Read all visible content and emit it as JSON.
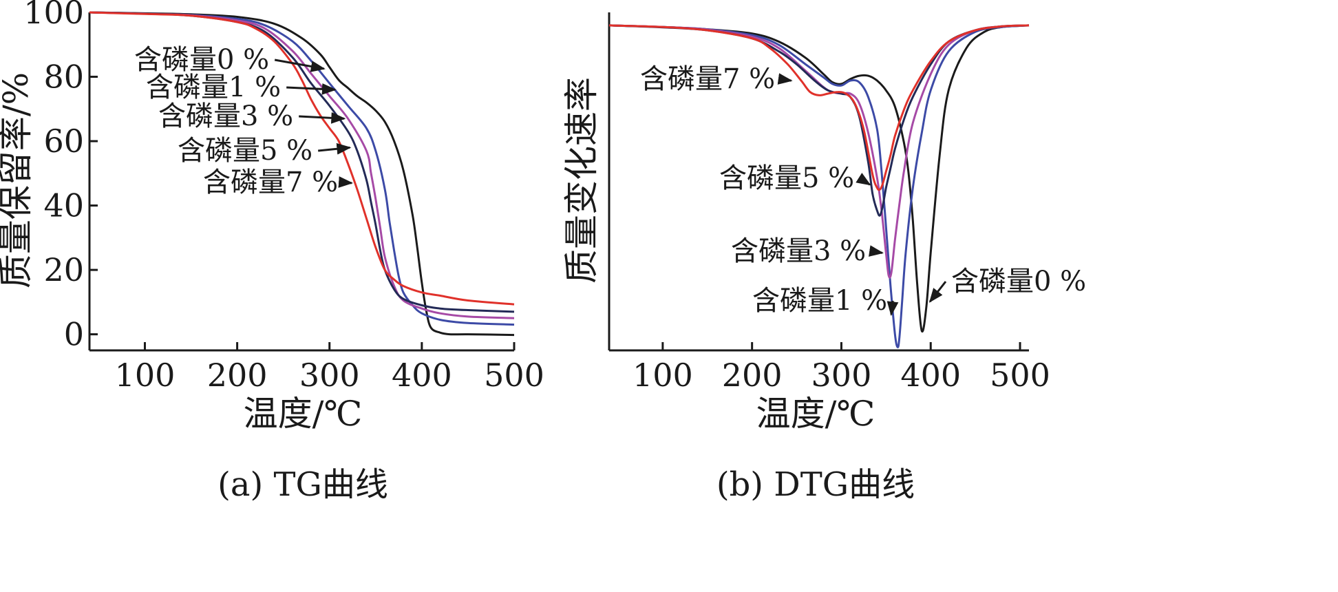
{
  "chart_data": [
    {
      "type": "line",
      "caption": "(a) TG曲线",
      "xlabel": "温度/℃",
      "ylabel": "质量保留率/%",
      "xlim": [
        40,
        500
      ],
      "ylim": [
        -5,
        100
      ],
      "xticks": [
        "100",
        "200",
        "300",
        "400",
        "500"
      ],
      "yticks": [
        "0",
        "20",
        "40",
        "60",
        "80",
        "100"
      ],
      "grid": false,
      "series": [
        {
          "name": "含磷量0 %",
          "color": "#1a1a1a",
          "x": [
            40,
            100,
            150,
            200,
            240,
            270,
            290,
            300,
            310,
            320,
            330,
            340,
            350,
            360,
            370,
            380,
            390,
            395,
            400,
            405,
            410,
            420,
            430,
            450,
            500
          ],
          "y": [
            100,
            99.7,
            99.4,
            98.6,
            96.5,
            92,
            87,
            83,
            79,
            76.5,
            74,
            72,
            69.5,
            66,
            60,
            51,
            37,
            27,
            16,
            7,
            2,
            0.5,
            0,
            0,
            -0.2
          ]
        },
        {
          "name": "含磷量1 %",
          "color": "#3c4aa6",
          "x": [
            40,
            100,
            150,
            200,
            230,
            260,
            280,
            300,
            320,
            340,
            350,
            360,
            365,
            370,
            375,
            380,
            390,
            400,
            420,
            450,
            500
          ],
          "y": [
            100,
            99.6,
            99.2,
            98,
            96,
            91,
            85,
            78,
            71,
            64,
            57,
            45,
            35,
            26,
            18,
            13,
            9,
            6.5,
            4.5,
            3.5,
            3
          ]
        },
        {
          "name": "含磷量3 %",
          "color": "#a64aa6",
          "x": [
            40,
            100,
            150,
            200,
            230,
            260,
            280,
            300,
            320,
            340,
            345,
            350,
            355,
            360,
            370,
            380,
            400,
            420,
            450,
            500
          ],
          "y": [
            100,
            99.6,
            99.1,
            97.5,
            95,
            88,
            81,
            74,
            67,
            57,
            50,
            42,
            33,
            24,
            15,
            10.5,
            8,
            6.5,
            5.5,
            5
          ]
        },
        {
          "name": "含磷量5 %",
          "color": "#232a57",
          "x": [
            40,
            100,
            150,
            200,
            230,
            260,
            280,
            300,
            320,
            330,
            340,
            345,
            350,
            355,
            360,
            370,
            380,
            400,
            420,
            450,
            500
          ],
          "y": [
            100,
            99.6,
            99,
            97,
            94,
            86,
            78,
            71,
            63,
            57,
            48,
            41,
            34,
            26,
            20,
            14,
            11,
            9,
            8,
            7.5,
            7
          ]
        },
        {
          "name": "含磷量7 %",
          "color": "#e0312a",
          "x": [
            40,
            100,
            150,
            200,
            220,
            240,
            260,
            270,
            280,
            290,
            300,
            310,
            320,
            330,
            340,
            350,
            360,
            370,
            380,
            400,
            420,
            450,
            500
          ],
          "y": [
            100,
            99.5,
            99,
            97,
            95,
            91,
            84,
            79,
            73,
            68,
            64,
            60,
            53,
            45,
            36,
            27,
            20,
            17,
            15,
            13,
            12,
            10.5,
            9.3
          ]
        }
      ],
      "annotations": [
        {
          "text": "含磷量0 %",
          "series": "含磷量0 %",
          "target_x": 300,
          "target_y": 82.5
        },
        {
          "text": "含磷量1 %",
          "series": "含磷量1 %",
          "target_x": 312,
          "target_y": 76
        },
        {
          "text": "含磷量3 %",
          "series": "含磷量3 %",
          "target_x": 322,
          "target_y": 67
        },
        {
          "text": "含磷量5 %",
          "series": "含磷量5 %",
          "target_x": 328,
          "target_y": 58
        },
        {
          "text": "含磷量7 %",
          "series": "含磷量7 %",
          "target_x": 330,
          "target_y": 47
        }
      ]
    },
    {
      "type": "line",
      "caption": "(b) DTG曲线",
      "xlabel": "温度/℃",
      "ylabel": "质量变化速率",
      "xlim": [
        40,
        510
      ],
      "ylim": [
        -100,
        4
      ],
      "yticks_labeled": false,
      "xticks": [
        "100",
        "200",
        "300",
        "400",
        "500"
      ],
      "grid": false,
      "series": [
        {
          "name": "含磷量0 %",
          "color": "#1a1a1a",
          "x": [
            40,
            100,
            150,
            200,
            230,
            260,
            280,
            290,
            300,
            310,
            320,
            330,
            340,
            350,
            360,
            370,
            375,
            380,
            385,
            390,
            395,
            400,
            410,
            420,
            440,
            460,
            480,
            510
          ],
          "y": [
            0,
            -0.5,
            -1.2,
            -2.5,
            -5,
            -10,
            -15,
            -17.5,
            -18,
            -16.5,
            -15.5,
            -15.5,
            -17,
            -20,
            -25,
            -36,
            -45,
            -60,
            -80,
            -94,
            -87,
            -70,
            -40,
            -20,
            -7,
            -2,
            -0.5,
            0
          ]
        },
        {
          "name": "含磷量1 %",
          "color": "#3c4aa6",
          "x": [
            40,
            100,
            150,
            200,
            230,
            260,
            280,
            290,
            300,
            310,
            320,
            330,
            340,
            345,
            350,
            355,
            360,
            363,
            365,
            368,
            372,
            380,
            390,
            400,
            420,
            450,
            480,
            510
          ],
          "y": [
            0,
            -0.5,
            -1.2,
            -3,
            -6,
            -12,
            -16,
            -18,
            -18.5,
            -17,
            -17.5,
            -22,
            -32,
            -45,
            -62,
            -80,
            -95,
            -99,
            -96,
            -85,
            -70,
            -50,
            -33,
            -20,
            -8,
            -2,
            -0.5,
            0
          ]
        },
        {
          "name": "含磷量3 %",
          "color": "#a64aa6",
          "x": [
            40,
            100,
            150,
            200,
            230,
            260,
            280,
            290,
            300,
            310,
            320,
            330,
            340,
            345,
            350,
            353,
            356,
            360,
            365,
            370,
            380,
            400,
            420,
            450,
            480,
            510
          ],
          "y": [
            0,
            -0.5,
            -1.3,
            -3.5,
            -7,
            -14,
            -19,
            -20.5,
            -21,
            -21,
            -24,
            -33,
            -47,
            -57,
            -70,
            -77,
            -76,
            -66,
            -55,
            -45,
            -30,
            -15,
            -6,
            -1.5,
            -0.3,
            0
          ]
        },
        {
          "name": "含磷量5 %",
          "color": "#232a57",
          "x": [
            40,
            100,
            150,
            200,
            230,
            250,
            270,
            285,
            300,
            310,
            320,
            330,
            335,
            340,
            343,
            346,
            350,
            355,
            360,
            370,
            380,
            400,
            420,
            450,
            480,
            510
          ],
          "y": [
            0,
            -0.6,
            -1.5,
            -4,
            -8,
            -12,
            -17,
            -20,
            -21,
            -22,
            -28,
            -42,
            -52,
            -57,
            -58.5,
            -56,
            -50,
            -44,
            -38,
            -29,
            -22,
            -12,
            -5,
            -1.5,
            -0.3,
            0
          ]
        },
        {
          "name": "含磷量7 %",
          "color": "#e0312a",
          "x": [
            40,
            100,
            150,
            200,
            220,
            240,
            255,
            265,
            275,
            285,
            295,
            305,
            315,
            325,
            335,
            340,
            343,
            346,
            350,
            355,
            360,
            370,
            380,
            400,
            420,
            450,
            480,
            510
          ],
          "y": [
            0,
            -0.5,
            -1.5,
            -4,
            -7,
            -12,
            -17,
            -20.5,
            -21.5,
            -21,
            -20.5,
            -21,
            -24,
            -32,
            -46,
            -50,
            -50.5,
            -49,
            -45,
            -40,
            -34,
            -26,
            -20,
            -11,
            -5,
            -1.5,
            -0.3,
            0
          ]
        }
      ],
      "annotations": [
        {
          "text": "含磷量7 %",
          "series": "含磷量7 %",
          "target_x": 250,
          "target_y": -17
        },
        {
          "text": "含磷量5 %",
          "series": "含磷量5 %",
          "target_x": 338,
          "target_y": -49
        },
        {
          "text": "含磷量3 %",
          "series": "含磷量3 %",
          "target_x": 352,
          "target_y": -70
        },
        {
          "text": "含磷量1 %",
          "series": "含磷量1 %",
          "target_x": 362,
          "target_y": -89
        },
        {
          "text": "含磷量0 %",
          "series": "含磷量0 %",
          "target_x": 393,
          "target_y": -85
        }
      ]
    }
  ]
}
